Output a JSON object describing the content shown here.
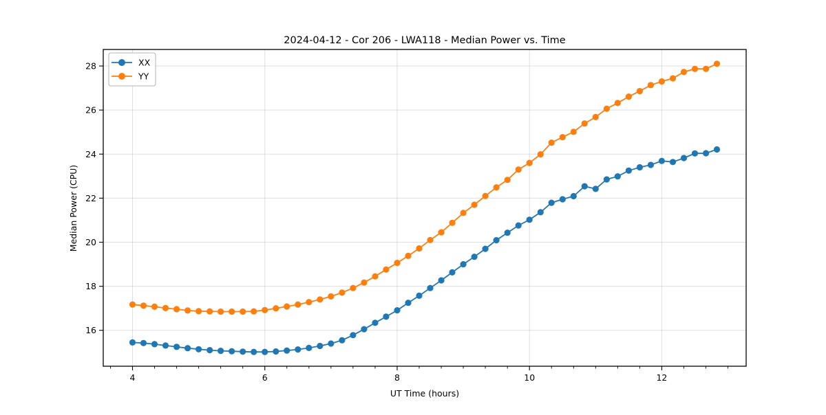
{
  "chart_data": {
    "type": "line",
    "title": "2024-04-12 - Cor 206 - LWA118 - Median Power vs. Time",
    "xlabel": "UT Time (hours)",
    "ylabel": "Median Power (CPU)",
    "xlim": [
      3.558,
      13.275
    ],
    "ylim": [
      14.37,
      28.75
    ],
    "grid": "major-both-axes",
    "grid_color": "#b0b0b0",
    "legend_position": "upper-left",
    "x_major_ticks": [
      4,
      6,
      8,
      10,
      12
    ],
    "x_minor_ticks": [
      3.667,
      4.333,
      4.667,
      5.0,
      5.333,
      5.667,
      6.333,
      6.667,
      7.0,
      7.333,
      7.667,
      8.333,
      8.667,
      9.0,
      9.333,
      9.667,
      10.333,
      10.667,
      11.0,
      11.333,
      11.667,
      12.333,
      12.667,
      13.0
    ],
    "y_major_ticks": [
      16,
      18,
      20,
      22,
      24,
      26,
      28
    ],
    "x": [
      4.0,
      4.167,
      4.333,
      4.5,
      4.667,
      4.833,
      5.0,
      5.167,
      5.333,
      5.5,
      5.667,
      5.833,
      6.0,
      6.167,
      6.333,
      6.5,
      6.667,
      6.833,
      7.0,
      7.167,
      7.333,
      7.5,
      7.667,
      7.833,
      8.0,
      8.167,
      8.333,
      8.5,
      8.667,
      8.833,
      9.0,
      9.167,
      9.333,
      9.5,
      9.667,
      9.833,
      10.0,
      10.167,
      10.333,
      10.5,
      10.667,
      10.833,
      11.0,
      11.167,
      11.333,
      11.5,
      11.667,
      11.833,
      12.0,
      12.167,
      12.333,
      12.5,
      12.667,
      12.833
    ],
    "series": [
      {
        "name": "XX",
        "color": "#1f77b4",
        "marker": "circle",
        "values": [
          15.45,
          15.42,
          15.37,
          15.31,
          15.25,
          15.19,
          15.14,
          15.1,
          15.07,
          15.05,
          15.03,
          15.02,
          15.02,
          15.04,
          15.08,
          15.13,
          15.2,
          15.29,
          15.4,
          15.55,
          15.78,
          16.05,
          16.34,
          16.62,
          16.91,
          17.25,
          17.57,
          17.92,
          18.27,
          18.63,
          19.0,
          19.34,
          19.7,
          20.09,
          20.43,
          20.76,
          21.02,
          21.36,
          21.79,
          21.95,
          22.09,
          22.54,
          22.42,
          22.85,
          22.99,
          23.25,
          23.4,
          23.51,
          23.69,
          23.64,
          23.82,
          24.03,
          24.04,
          24.21
        ]
      },
      {
        "name": "YY",
        "color": "#ff7f0e",
        "marker": "circle",
        "values": [
          17.17,
          17.12,
          17.07,
          17.01,
          16.96,
          16.9,
          16.87,
          16.86,
          16.85,
          16.85,
          16.85,
          16.86,
          16.92,
          17.0,
          17.08,
          17.17,
          17.28,
          17.4,
          17.54,
          17.71,
          17.92,
          18.17,
          18.45,
          18.76,
          19.06,
          19.38,
          19.72,
          20.1,
          20.45,
          20.88,
          21.33,
          21.7,
          22.1,
          22.49,
          22.83,
          23.3,
          23.6,
          23.99,
          24.52,
          24.77,
          25.01,
          25.39,
          25.68,
          26.06,
          26.32,
          26.61,
          26.86,
          27.13,
          27.3,
          27.44,
          27.73,
          27.87,
          27.87,
          28.1
        ]
      }
    ]
  }
}
